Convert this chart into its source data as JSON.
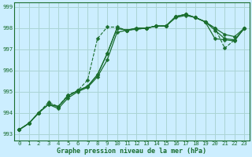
{
  "xlabel": "Graphe pression niveau de la mer (hPa)",
  "bg_color": "#cceeff",
  "grid_color": "#aad4d4",
  "line_color": "#1a6e2e",
  "xlim_min": -0.5,
  "xlim_max": 23.5,
  "ylim_min": 992.7,
  "ylim_max": 999.2,
  "yticks": [
    993,
    994,
    995,
    996,
    997,
    998,
    999
  ],
  "xticks": [
    0,
    1,
    2,
    3,
    4,
    5,
    6,
    7,
    8,
    9,
    10,
    11,
    12,
    13,
    14,
    15,
    16,
    17,
    18,
    19,
    20,
    21,
    22,
    23
  ],
  "lines": [
    {
      "x": [
        0,
        1,
        2,
        3,
        4,
        5,
        6,
        7,
        8,
        9,
        10,
        11,
        12,
        13,
        14,
        15,
        16,
        17,
        18,
        19,
        20,
        21,
        22,
        23
      ],
      "y": [
        993.2,
        993.5,
        994.0,
        994.4,
        994.2,
        994.7,
        995.0,
        995.2,
        995.7,
        996.5,
        997.8,
        997.9,
        998.0,
        998.0,
        998.1,
        998.1,
        998.5,
        998.6,
        998.5,
        998.3,
        997.9,
        997.5,
        997.45,
        998.0
      ],
      "linestyle": "-",
      "linewidth": 0.9,
      "markersize": 2.5
    },
    {
      "x": [
        0,
        1,
        2,
        3,
        4,
        5,
        6,
        7,
        8,
        9,
        10,
        11,
        12,
        13,
        14,
        15,
        16,
        17,
        18,
        19,
        20,
        21,
        22,
        23
      ],
      "y": [
        993.2,
        993.5,
        994.0,
        994.4,
        994.3,
        994.8,
        995.05,
        995.25,
        995.8,
        996.8,
        998.0,
        997.9,
        998.0,
        998.0,
        998.1,
        998.1,
        998.55,
        998.65,
        998.5,
        998.3,
        998.0,
        997.7,
        997.6,
        998.0
      ],
      "linestyle": "-",
      "linewidth": 0.9,
      "markersize": 2.5
    },
    {
      "x": [
        0,
        1,
        2,
        3,
        4,
        5,
        6,
        7,
        8,
        9,
        10,
        11,
        12,
        13,
        14,
        15,
        16,
        17,
        18,
        19,
        20,
        21,
        22,
        23
      ],
      "y": [
        993.2,
        993.5,
        994.0,
        994.5,
        994.3,
        994.85,
        995.05,
        995.55,
        997.5,
        998.05,
        998.05,
        997.9,
        997.95,
        998.0,
        998.1,
        998.1,
        998.55,
        998.65,
        998.5,
        998.3,
        998.0,
        997.05,
        997.45,
        998.0
      ],
      "linestyle": "--",
      "linewidth": 0.8,
      "markersize": 2.5
    },
    {
      "x": [
        0,
        1,
        2,
        3,
        4,
        5,
        6,
        7,
        8,
        9,
        10,
        11,
        12,
        13,
        14,
        15,
        16,
        17,
        18,
        19,
        20,
        21,
        22,
        23
      ],
      "y": [
        993.2,
        993.5,
        994.0,
        994.4,
        994.3,
        994.8,
        995.05,
        995.25,
        995.8,
        996.8,
        998.0,
        997.9,
        997.95,
        998.0,
        998.1,
        998.1,
        998.55,
        998.65,
        998.5,
        998.3,
        997.5,
        997.45,
        997.4,
        998.0
      ],
      "linestyle": "-",
      "linewidth": 0.9,
      "markersize": 2.5
    }
  ],
  "xlabel_fontsize": 6.0,
  "tick_fontsize": 5.2
}
